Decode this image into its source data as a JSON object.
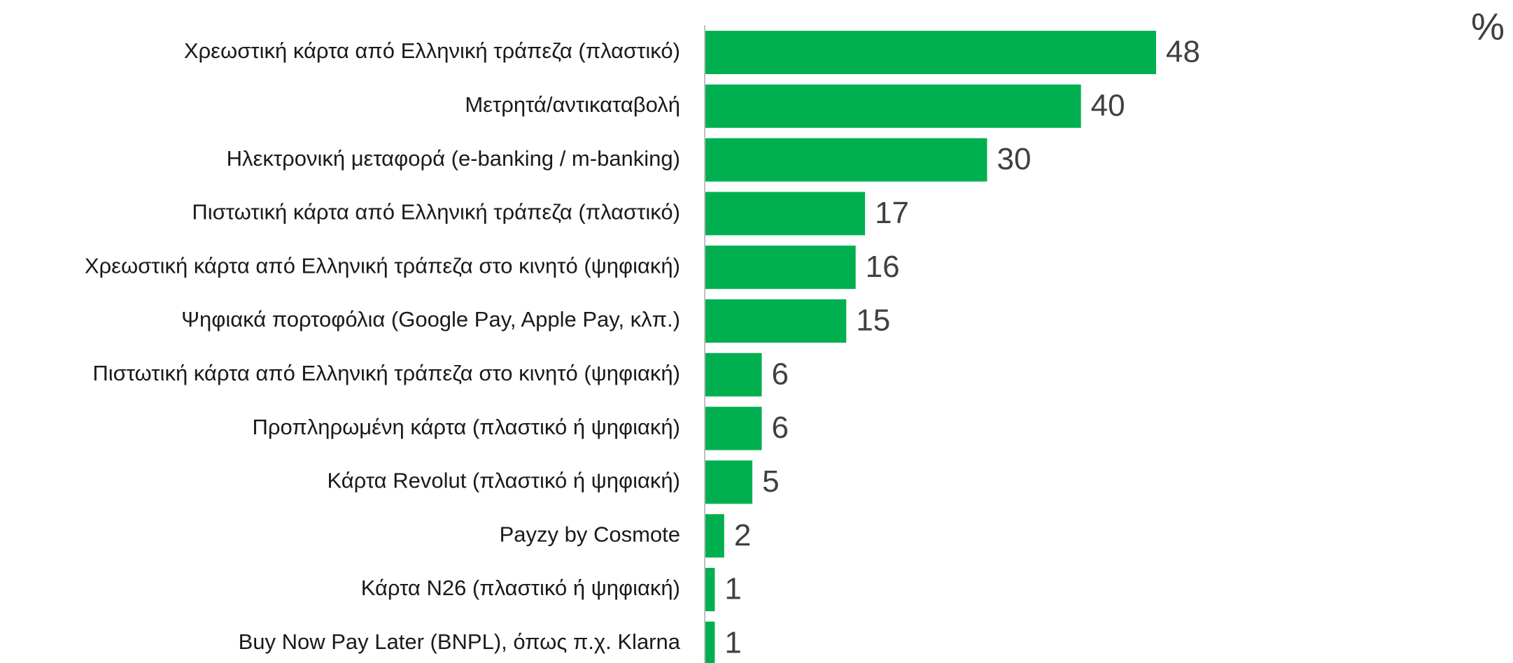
{
  "chart_data": {
    "type": "bar",
    "orientation": "horizontal",
    "unit": "%",
    "color": "#00b050",
    "categories": [
      "Χρεωστική κάρτα από Ελληνική τράπεζα (πλαστικό)",
      "Μετρητά/αντικαταβολή",
      "Ηλεκτρονική μεταφορά (e-banking / m-banking)",
      "Πιστωτική κάρτα από Ελληνική τράπεζα (πλαστικό)",
      "Χρεωστική κάρτα από Ελληνική τράπεζα στο κινητό (ψηφιακή)",
      "Ψηφιακά πορτοφόλια (Google Pay, Apple Pay, κλπ.)",
      "Πιστωτική κάρτα από Ελληνική τράπεζα στο κινητό (ψηφιακή)",
      "Προπληρωμένη κάρτα (πλαστικό ή ψηφιακή)",
      "Κάρτα Revolut (πλαστικό ή ψηφιακή)",
      "Payzy by Cosmote",
      "Κάρτα N26 (πλαστικό ή ψηφιακή)",
      "Buy Now Pay Later (BNPL), όπως π.χ. Klarna"
    ],
    "values": [
      48,
      40,
      30,
      17,
      16,
      15,
      6,
      6,
      5,
      2,
      1,
      1
    ]
  }
}
